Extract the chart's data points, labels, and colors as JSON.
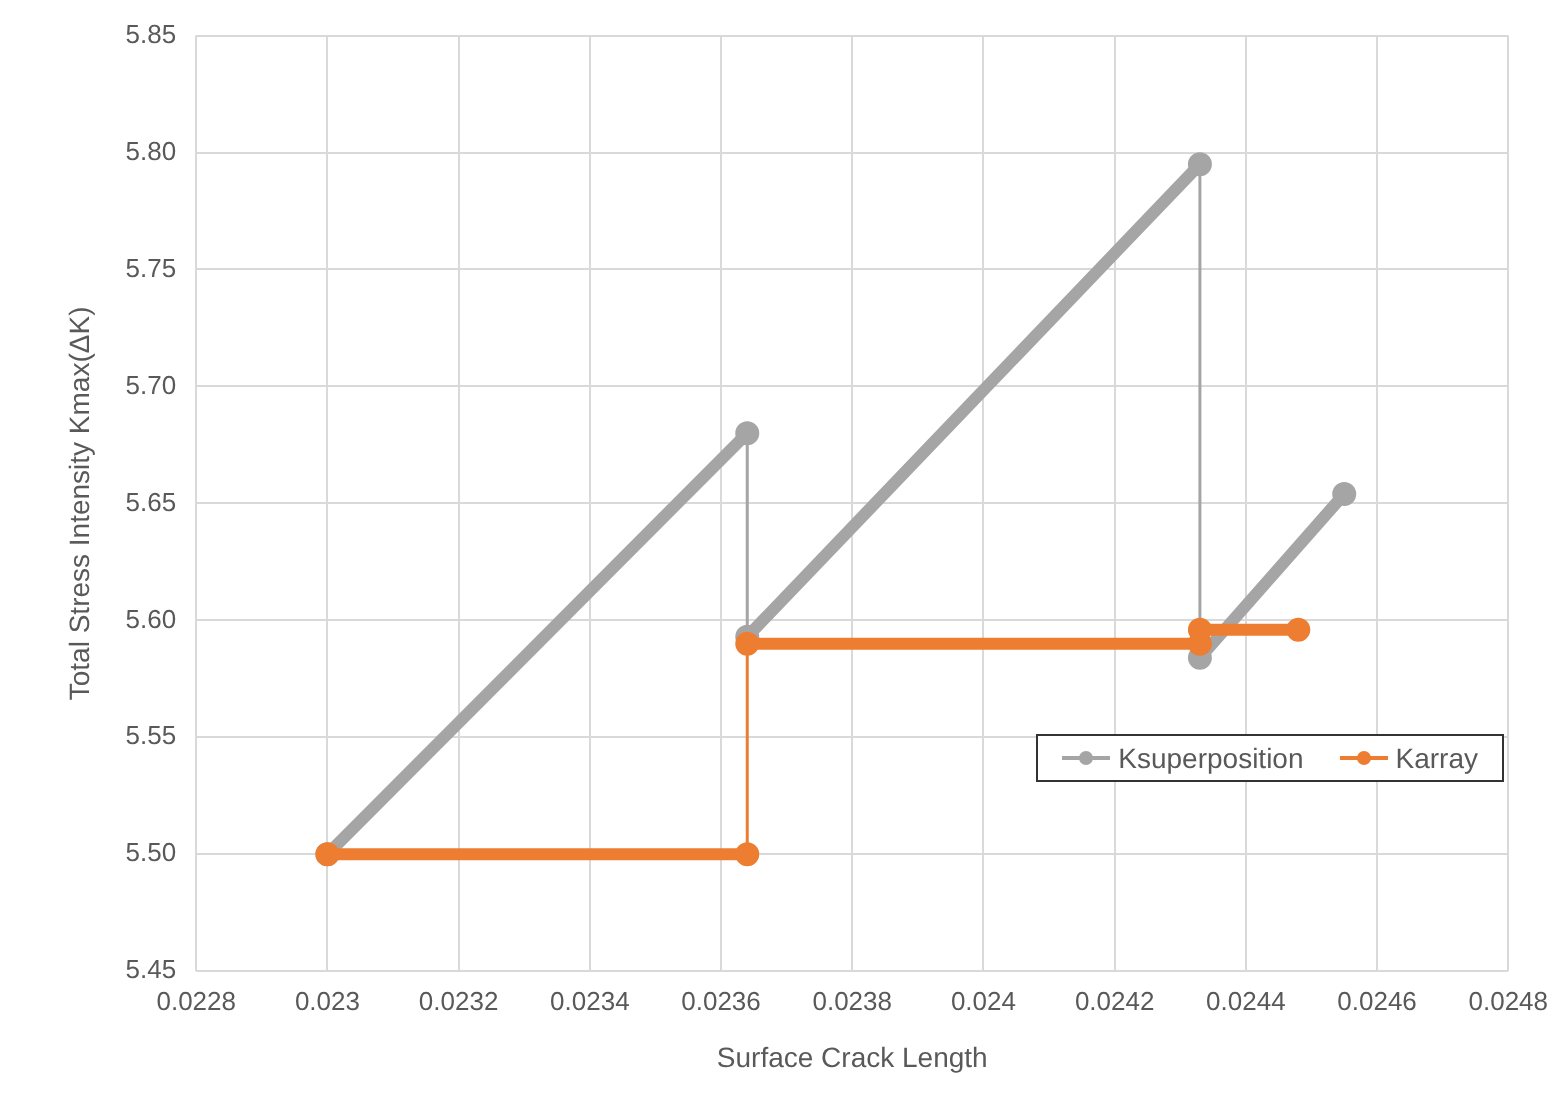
{
  "chart_data": {
    "type": "line",
    "xlabel": "Surface Crack Length",
    "ylabel": "Total Stress Intensity Kmax(ΔK)",
    "xlim": [
      0.0228,
      0.0248
    ],
    "xticks": [
      0.0228,
      0.023,
      0.0232,
      0.0234,
      0.0236,
      0.0238,
      0.024,
      0.0242,
      0.0244,
      0.0246,
      0.0248
    ],
    "ylim": [
      5.45,
      5.85
    ],
    "yticks": [
      5.45,
      {
        "value": 5.5,
        "label": "5.50"
      },
      5.55,
      {
        "value": 5.6,
        "label": "5.60"
      },
      5.65,
      {
        "value": 5.7,
        "label": "5.70"
      },
      5.75,
      {
        "value": 5.8,
        "label": "5.80"
      },
      5.85
    ],
    "grid": true,
    "legend": "right",
    "marker": "circle",
    "line_style": "solid",
    "series": [
      {
        "name": "Ksuperposition",
        "color": "#a5a5a5",
        "x": [
          0.023,
          0.02364,
          0.02364,
          0.02433,
          0.02433,
          0.02455
        ],
        "values": [
          5.5,
          5.68,
          5.593,
          5.795,
          5.584,
          5.654
        ]
      },
      {
        "name": "Karray",
        "color": "#ed7d31",
        "x": [
          0.023,
          0.02364,
          0.02364,
          0.02433,
          0.02433,
          0.02448
        ],
        "values": [
          5.5,
          5.5,
          5.59,
          5.59,
          5.596,
          5.596
        ]
      }
    ]
  }
}
